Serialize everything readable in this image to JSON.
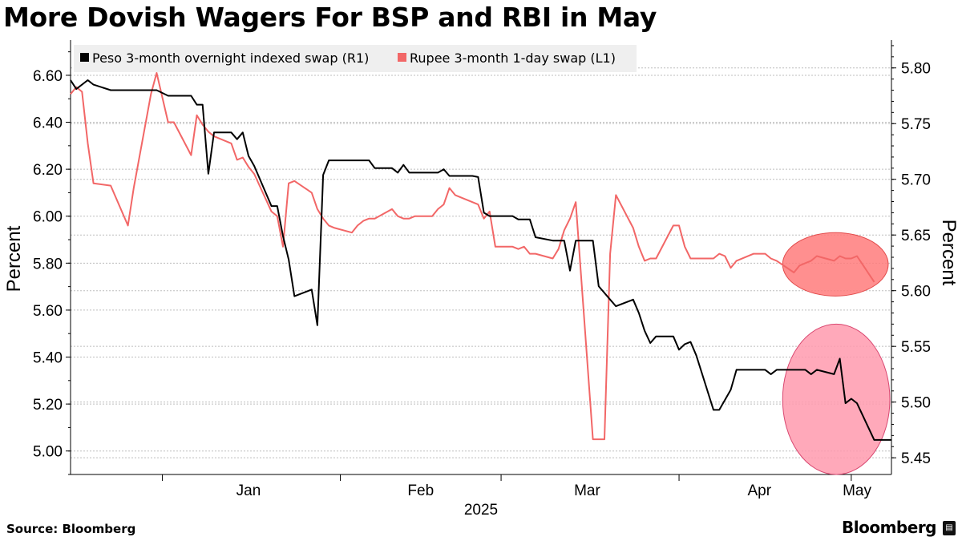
{
  "title": "More Dovish Wagers For BSP and RBI in May",
  "footer": {
    "source": "Source: Bloomberg",
    "brand": "Bloomberg"
  },
  "colors": {
    "peso": "#000000",
    "rupee": "#f26767",
    "highlight_top": "#ff7b7b",
    "highlight_bottom": "#ff9aae",
    "grid": "#bdbdbd",
    "legend_bg": "#efefef"
  },
  "chart_data": {
    "type": "line",
    "title": "More Dovish Wagers For BSP and RBI in May",
    "x_label": "2025",
    "x_ticks": [
      "Jan",
      "Feb",
      "Mar",
      "Apr",
      "May"
    ],
    "y_left": {
      "label": "Percent",
      "range": [
        4.9,
        6.75
      ],
      "ticks": [
        "5.00",
        "5.20",
        "5.40",
        "5.60",
        "5.80",
        "6.00",
        "6.20",
        "6.40",
        "6.60"
      ]
    },
    "y_right": {
      "label": "Percent",
      "range": [
        5.435,
        5.825
      ],
      "ticks": [
        "5.45",
        "5.50",
        "5.55",
        "5.60",
        "5.65",
        "5.70",
        "5.75",
        "5.80"
      ]
    },
    "legend_position": "top-left",
    "series": [
      {
        "name": "Peso 3-month overnight indexed swap (R1)",
        "axis": "right",
        "points": [
          [
            "Dec 16",
            5.789
          ],
          [
            "Dec 17",
            5.781
          ],
          [
            "Dec 19",
            5.789
          ],
          [
            "Dec 20",
            5.785
          ],
          [
            "Dec 23",
            5.78
          ],
          [
            "Dec 24",
            5.78
          ],
          [
            "Dec 26",
            5.78
          ],
          [
            "Dec 27",
            5.78
          ],
          [
            "Dec 30",
            5.78
          ],
          [
            "Dec 31",
            5.78
          ],
          [
            "Jan 2",
            5.775
          ],
          [
            "Jan 3",
            5.775
          ],
          [
            "Jan 6",
            5.775
          ],
          [
            "Jan 7",
            5.767
          ],
          [
            "Jan 8",
            5.767
          ],
          [
            "Jan 9",
            5.705
          ],
          [
            "Jan 10",
            5.742
          ],
          [
            "Jan 13",
            5.742
          ],
          [
            "Jan 14",
            5.736
          ],
          [
            "Jan 15",
            5.742
          ],
          [
            "Jan 16",
            5.721
          ],
          [
            "Jan 17",
            5.712
          ],
          [
            "Jan 20",
            5.676
          ],
          [
            "Jan 21",
            5.676
          ],
          [
            "Jan 22",
            5.649
          ],
          [
            "Jan 23",
            5.628
          ],
          [
            "Jan 24",
            5.595
          ],
          [
            "Jan 27",
            5.601
          ],
          [
            "Jan 28",
            5.569
          ],
          [
            "Jan 29",
            5.704
          ],
          [
            "Jan 30",
            5.717
          ],
          [
            "Jan 31",
            5.717
          ],
          [
            "Feb 3",
            5.717
          ],
          [
            "Feb 4",
            5.717
          ],
          [
            "Feb 5",
            5.717
          ],
          [
            "Feb 6",
            5.717
          ],
          [
            "Feb 7",
            5.71
          ],
          [
            "Feb 10",
            5.71
          ],
          [
            "Feb 11",
            5.706
          ],
          [
            "Feb 12",
            5.713
          ],
          [
            "Feb 13",
            5.706
          ],
          [
            "Feb 14",
            5.706
          ],
          [
            "Feb 17",
            5.706
          ],
          [
            "Feb 18",
            5.706
          ],
          [
            "Feb 19",
            5.709
          ],
          [
            "Feb 20",
            5.703
          ],
          [
            "Feb 21",
            5.703
          ],
          [
            "Feb 24",
            5.703
          ],
          [
            "Feb 25",
            5.702
          ],
          [
            "Feb 26",
            5.67
          ],
          [
            "Feb 27",
            5.667
          ],
          [
            "Feb 28",
            5.667
          ],
          [
            "Mar 3",
            5.667
          ],
          [
            "Mar 4",
            5.664
          ],
          [
            "Mar 5",
            5.664
          ],
          [
            "Mar 6",
            5.664
          ],
          [
            "Mar 7",
            5.648
          ],
          [
            "Mar 10",
            5.645
          ],
          [
            "Mar 11",
            5.645
          ],
          [
            "Mar 12",
            5.645
          ],
          [
            "Mar 13",
            5.618
          ],
          [
            "Mar 14",
            5.645
          ],
          [
            "Mar 17",
            5.645
          ],
          [
            "Mar 18",
            5.604
          ],
          [
            "Mar 19",
            5.598
          ],
          [
            "Mar 20",
            5.592
          ],
          [
            "Mar 21",
            5.586
          ],
          [
            "Mar 24",
            5.592
          ],
          [
            "Mar 25",
            5.58
          ],
          [
            "Mar 26",
            5.564
          ],
          [
            "Mar 27",
            5.553
          ],
          [
            "Mar 28",
            5.559
          ],
          [
            "Mar 31",
            5.559
          ],
          [
            "Apr 1",
            5.547
          ],
          [
            "Apr 2",
            5.552
          ],
          [
            "Apr 3",
            5.554
          ],
          [
            "Apr 4",
            5.542
          ],
          [
            "Apr 7",
            5.493
          ],
          [
            "Apr 8",
            5.493
          ],
          [
            "Apr 10",
            5.511
          ],
          [
            "Apr 11",
            5.529
          ],
          [
            "Apr 14",
            5.529
          ],
          [
            "Apr 15",
            5.529
          ],
          [
            "Apr 16",
            5.529
          ],
          [
            "Apr 17",
            5.525
          ],
          [
            "Apr 18",
            5.529
          ],
          [
            "Apr 21",
            5.529
          ],
          [
            "Apr 22",
            5.529
          ],
          [
            "Apr 23",
            5.529
          ],
          [
            "Apr 24",
            5.525
          ],
          [
            "Apr 25",
            5.529
          ],
          [
            "Apr 28",
            5.525
          ],
          [
            "Apr 29",
            5.539
          ],
          [
            "Apr 30",
            5.499
          ],
          [
            "May 1",
            5.503
          ],
          [
            "May 2",
            5.499
          ],
          [
            "May 5",
            5.466
          ],
          [
            "May 6",
            5.466
          ],
          [
            "May 7",
            5.466
          ],
          [
            "May 8",
            5.466
          ]
        ]
      },
      {
        "name": "Rupee 3-month 1-day swap (L1)",
        "axis": "left",
        "points": [
          [
            "Dec 16",
            6.52
          ],
          [
            "Dec 17",
            6.55
          ],
          [
            "Dec 18",
            6.53
          ],
          [
            "Dec 19",
            6.31
          ],
          [
            "Dec 20",
            6.14
          ],
          [
            "Dec 23",
            6.13
          ],
          [
            "Dec 26",
            5.96
          ],
          [
            "Dec 27",
            6.12
          ],
          [
            "Dec 30",
            6.52
          ],
          [
            "Dec 31",
            6.61
          ],
          [
            "Jan 2",
            6.4
          ],
          [
            "Jan 3",
            6.4
          ],
          [
            "Jan 6",
            6.26
          ],
          [
            "Jan 7",
            6.43
          ],
          [
            "Jan 8",
            6.39
          ],
          [
            "Jan 9",
            6.36
          ],
          [
            "Jan 10",
            6.34
          ],
          [
            "Jan 13",
            6.31
          ],
          [
            "Jan 14",
            6.24
          ],
          [
            "Jan 15",
            6.25
          ],
          [
            "Jan 16",
            6.21
          ],
          [
            "Jan 17",
            6.18
          ],
          [
            "Jan 20",
            6.02
          ],
          [
            "Jan 21",
            6.0
          ],
          [
            "Jan 22",
            5.87
          ],
          [
            "Jan 23",
            6.14
          ],
          [
            "Jan 24",
            6.15
          ],
          [
            "Jan 27",
            6.1
          ],
          [
            "Jan 28",
            6.03
          ],
          [
            "Jan 29",
            5.99
          ],
          [
            "Jan 30",
            5.96
          ],
          [
            "Jan 31",
            5.95
          ],
          [
            "Feb 3",
            5.93
          ],
          [
            "Feb 4",
            5.96
          ],
          [
            "Feb 5",
            5.98
          ],
          [
            "Feb 6",
            5.99
          ],
          [
            "Feb 7",
            5.99
          ],
          [
            "Feb 10",
            6.03
          ],
          [
            "Feb 11",
            6.0
          ],
          [
            "Feb 12",
            5.99
          ],
          [
            "Feb 13",
            5.99
          ],
          [
            "Feb 14",
            6.0
          ],
          [
            "Feb 17",
            6.0
          ],
          [
            "Feb 18",
            6.03
          ],
          [
            "Feb 19",
            6.05
          ],
          [
            "Feb 20",
            6.12
          ],
          [
            "Feb 21",
            6.09
          ],
          [
            "Feb 24",
            6.06
          ],
          [
            "Feb 25",
            6.05
          ],
          [
            "Feb 26",
            5.99
          ],
          [
            "Feb 27",
            6.02
          ],
          [
            "Feb 28",
            5.87
          ],
          [
            "Mar 3",
            5.87
          ],
          [
            "Mar 4",
            5.86
          ],
          [
            "Mar 5",
            5.87
          ],
          [
            "Mar 6",
            5.84
          ],
          [
            "Mar 7",
            5.84
          ],
          [
            "Mar 10",
            5.82
          ],
          [
            "Mar 11",
            5.86
          ],
          [
            "Mar 12",
            5.94
          ],
          [
            "Mar 13",
            5.99
          ],
          [
            "Mar 14",
            6.06
          ],
          [
            "Mar 17",
            5.05
          ],
          [
            "Mar 18",
            5.05
          ],
          [
            "Mar 19",
            5.05
          ],
          [
            "Mar 20",
            5.84
          ],
          [
            "Mar 21",
            6.09
          ],
          [
            "Mar 24",
            5.95
          ],
          [
            "Mar 25",
            5.87
          ],
          [
            "Mar 26",
            5.81
          ],
          [
            "Mar 27",
            5.82
          ],
          [
            "Mar 28",
            5.82
          ],
          [
            "Mar 31",
            5.96
          ],
          [
            "Apr 1",
            5.96
          ],
          [
            "Apr 2",
            5.87
          ],
          [
            "Apr 3",
            5.82
          ],
          [
            "Apr 4",
            5.82
          ],
          [
            "Apr 7",
            5.82
          ],
          [
            "Apr 8",
            5.84
          ],
          [
            "Apr 9",
            5.83
          ],
          [
            "Apr 10",
            5.78
          ],
          [
            "Apr 11",
            5.81
          ],
          [
            "Apr 14",
            5.84
          ],
          [
            "Apr 15",
            5.84
          ],
          [
            "Apr 16",
            5.84
          ],
          [
            "Apr 17",
            5.82
          ],
          [
            "Apr 18",
            5.81
          ],
          [
            "Apr 21",
            5.76
          ],
          [
            "Apr 22",
            5.79
          ],
          [
            "Apr 23",
            5.8
          ],
          [
            "Apr 24",
            5.81
          ],
          [
            "Apr 25",
            5.83
          ],
          [
            "Apr 28",
            5.81
          ],
          [
            "Apr 29",
            5.83
          ],
          [
            "Apr 30",
            5.82
          ],
          [
            "May 1",
            5.82
          ],
          [
            "May 2",
            5.83
          ],
          [
            "May 5",
            5.72
          ]
        ]
      }
    ],
    "annotations": [
      {
        "type": "highlight-ellipse",
        "target": "Rupee 3-month 1-day swap (L1)",
        "from": "Apr 21",
        "to": "May 5"
      },
      {
        "type": "highlight-ellipse",
        "target": "Peso 3-month overnight indexed swap (R1)",
        "from": "Apr 21",
        "to": "May 8"
      }
    ]
  }
}
